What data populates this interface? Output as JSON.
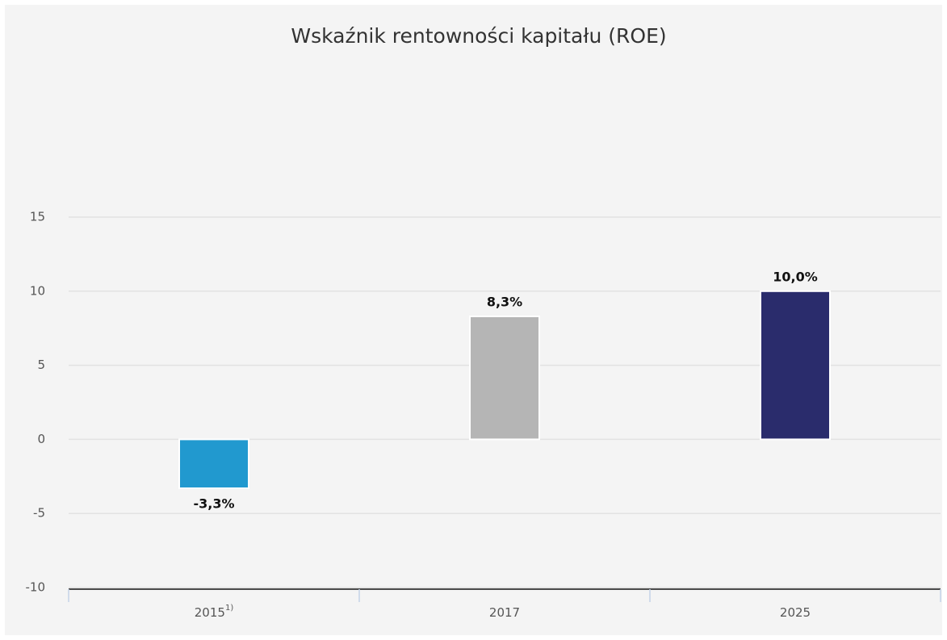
{
  "chart_data": {
    "type": "bar",
    "title": "Wskaźnik rentowności kapitału (ROE)",
    "categories": [
      "2015",
      "2017",
      "2025"
    ],
    "category_notes": [
      "1)",
      null,
      null
    ],
    "values": [
      -3.3,
      8.3,
      10.0
    ],
    "value_labels": [
      "-3,3%",
      "8,3%",
      "10,0%"
    ],
    "colors": [
      "#2199cf",
      "#b5b5b5",
      "#2a2c6c"
    ],
    "ylim": [
      -10,
      15
    ],
    "yticks": [
      -10,
      -5,
      0,
      5,
      10,
      15
    ],
    "grid": true
  }
}
